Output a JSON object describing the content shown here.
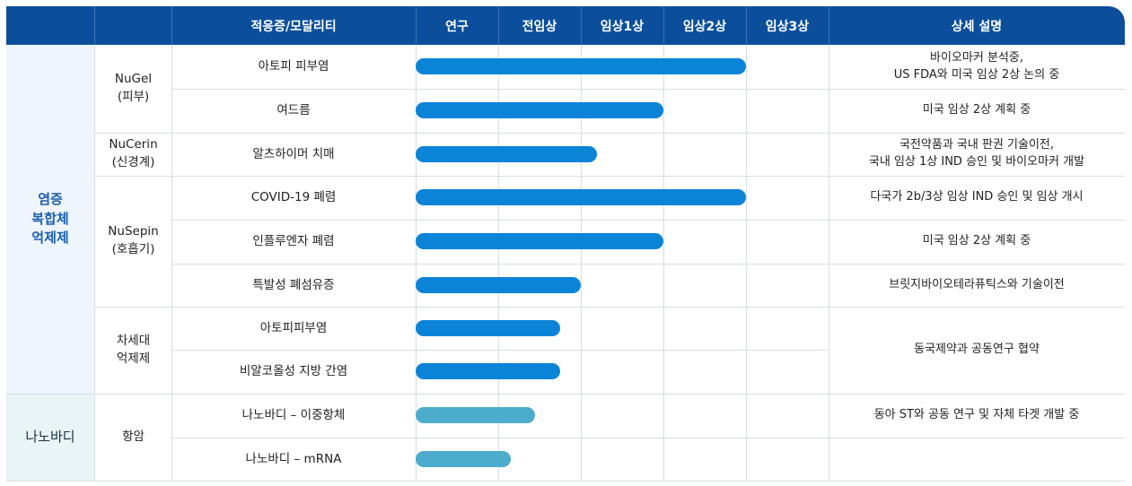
{
  "header": {
    "indication_label": "적응증/모달리티",
    "stages": [
      "연구",
      "전임상",
      "임상1상",
      "임상2상",
      "임상3상"
    ],
    "description_label": "상세 설명"
  },
  "categories": [
    {
      "name": "염증\n복합체\n억제제"
    },
    {
      "name": "나노바디"
    }
  ],
  "platforms": [
    {
      "name": "NuGel\n(피부)"
    },
    {
      "name": "NuCerin\n(신경계)"
    },
    {
      "name": "NuSepin\n(호흡기)"
    },
    {
      "name": "차세대\n억제제"
    },
    {
      "name": "항암"
    }
  ],
  "descriptions": [
    {
      "text": "바이오마커 분석중,\nUS FDA와 미국 임상 2상 논의 중"
    },
    {
      "text": "미국 임상 2상 계획 중"
    },
    {
      "text": "국전약품과  국내 판권 기술이전,\n국내 임상 1상 IND 승인 및 바이오마커 개발"
    },
    {
      "text": "다국가 2b/3상 임상 IND 승인 및 임상 개시"
    },
    {
      "text": "미국 임상 2상 계획 중"
    },
    {
      "text": "브릿지바이오테라퓨틱스와 기술이전"
    },
    {
      "text": "동국제약과 공동연구 협약"
    },
    {
      "text": "동아 ST와 공동 연구 및 자체 타겟 개발 중"
    }
  ],
  "chart_data": {
    "type": "bar",
    "orientation": "horizontal",
    "x_categories": [
      "연구",
      "전임상",
      "임상1상",
      "임상2상",
      "임상3상"
    ],
    "x_range": [
      0,
      5
    ],
    "value_unit": "pipeline stage progress (1 = end of 연구, 5 = end of 임상3상)",
    "categories": [
      "아토피 피부염",
      "여드름",
      "알츠하이머 치매",
      "COVID-19 폐렴",
      "인플루엔자 폐렴",
      "특발성 폐섬유증",
      "아토피피부염",
      "비알코올성 지방 간염",
      "나노바디 – 이중항체",
      "나노바디 – mRNA"
    ],
    "series": [
      {
        "values": [
          4.0,
          3.0,
          2.2,
          4.0,
          3.0,
          2.0,
          1.75,
          1.75,
          1.45,
          1.15
        ]
      }
    ],
    "colors": {
      "bar": "#0b84d8",
      "nano_bar": "#4caccb",
      "header": "#0b4f9c"
    }
  }
}
